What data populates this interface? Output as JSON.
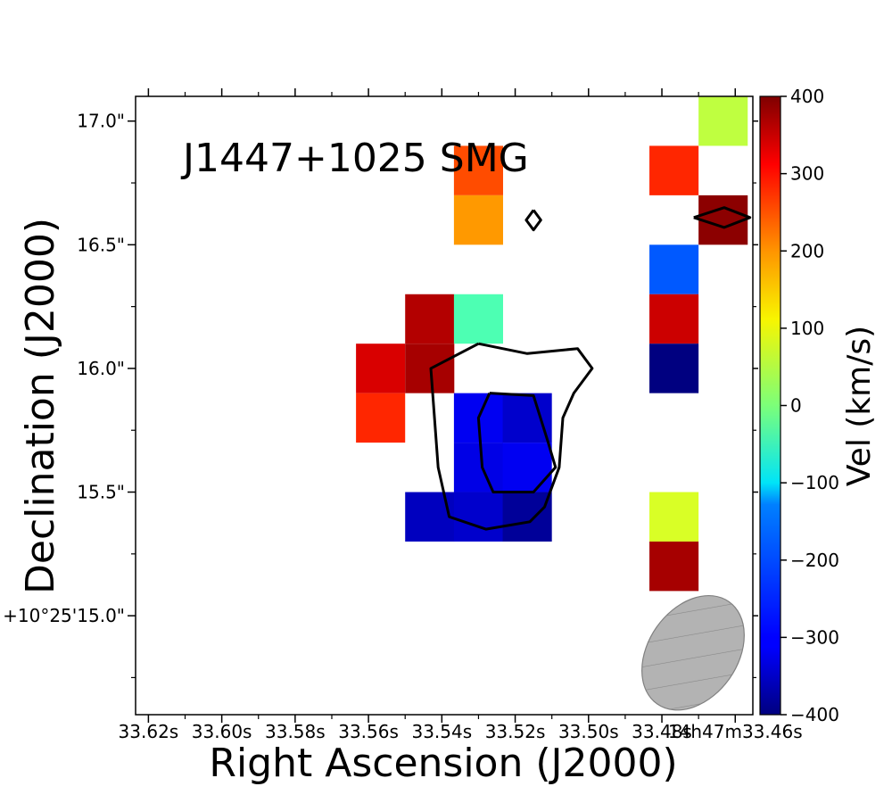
{
  "chart_data": {
    "type": "heatmap",
    "title": "J1447+1025 SMG",
    "xlabel": "Right Ascension (J2000)",
    "ylabel": "Declination (J2000)",
    "colorbar_label": "Vel (km/s)",
    "colorbar_range": [
      -400,
      400
    ],
    "colorbar_ticks": [
      400,
      300,
      200,
      100,
      0,
      -100,
      -200,
      -300,
      -400
    ],
    "colorbar_tick_labels": [
      "400",
      "300",
      "200",
      "100",
      "0",
      "−100",
      "−200",
      "−300",
      "−400"
    ],
    "xlim_s": [
      33.6235,
      33.4552
    ],
    "ylim_arcsec": [
      14.6,
      17.1
    ],
    "x_tick_values": [
      33.62,
      33.6,
      33.58,
      33.56,
      33.54,
      33.52,
      33.5,
      33.48,
      33.46
    ],
    "x_tick_labels": [
      "33.62s",
      "33.60s",
      "33.58s",
      "33.56s",
      "33.54s",
      "33.52s",
      "33.50s",
      "33.48s",
      "14h47m33.46s"
    ],
    "y_tick_values": [
      17.0,
      16.5,
      16.0,
      15.5,
      15.0
    ],
    "y_tick_labels": [
      "17.0\"",
      "16.5\"",
      "16.0\"",
      "15.5\"",
      "+10°25'15.0\""
    ],
    "pixel_size": {
      "ra_s": 0.0134,
      "dec_arcsec": 0.2
    },
    "pixels": [
      {
        "ra": 33.53,
        "dec": 16.8,
        "v": 240
      },
      {
        "ra": 33.53,
        "dec": 16.6,
        "v": 180
      },
      {
        "ra": 33.5433,
        "dec": 16.2,
        "v": 360
      },
      {
        "ra": 33.53,
        "dec": 16.2,
        "v": -40
      },
      {
        "ra": 33.5567,
        "dec": 16.0,
        "v": 330
      },
      {
        "ra": 33.5433,
        "dec": 16.0,
        "v": 370
      },
      {
        "ra": 33.5567,
        "dec": 15.8,
        "v": 270
      },
      {
        "ra": 33.53,
        "dec": 15.8,
        "v": -310
      },
      {
        "ra": 33.5167,
        "dec": 15.8,
        "v": -340
      },
      {
        "ra": 33.53,
        "dec": 15.6,
        "v": -320
      },
      {
        "ra": 33.5167,
        "dec": 15.6,
        "v": -310
      },
      {
        "ra": 33.5433,
        "dec": 15.4,
        "v": -350
      },
      {
        "ra": 33.53,
        "dec": 15.4,
        "v": -340
      },
      {
        "ra": 33.5167,
        "dec": 15.4,
        "v": -380
      },
      {
        "ra": 33.4767,
        "dec": 16.8,
        "v": 270
      },
      {
        "ra": 33.4767,
        "dec": 16.4,
        "v": -230
      },
      {
        "ra": 33.4767,
        "dec": 16.2,
        "v": 340
      },
      {
        "ra": 33.4767,
        "dec": 16.0,
        "v": -400
      },
      {
        "ra": 33.4767,
        "dec": 15.4,
        "v": 70
      },
      {
        "ra": 33.4767,
        "dec": 15.2,
        "v": 370
      },
      {
        "ra": 33.4633,
        "dec": 17.0,
        "v": 50
      },
      {
        "ra": 33.4633,
        "dec": 16.6,
        "v": 390
      }
    ],
    "contours": [
      {
        "level": "outer",
        "points": [
          [
            33.53,
            16.1
          ],
          [
            33.5167,
            16.06
          ],
          [
            33.503,
            16.08
          ],
          [
            33.499,
            16.0
          ],
          [
            33.504,
            15.9
          ],
          [
            33.507,
            15.8
          ],
          [
            33.508,
            15.6
          ],
          [
            33.512,
            15.44
          ],
          [
            33.516,
            15.38
          ],
          [
            33.528,
            15.35
          ],
          [
            33.538,
            15.4
          ],
          [
            33.541,
            15.6
          ],
          [
            33.542,
            15.8
          ],
          [
            33.543,
            16.0
          ],
          [
            33.53,
            16.1
          ]
        ]
      },
      {
        "level": "inner",
        "points": [
          [
            33.527,
            15.9
          ],
          [
            33.515,
            15.89
          ],
          [
            33.511,
            15.7
          ],
          [
            33.509,
            15.6
          ],
          [
            33.515,
            15.5
          ],
          [
            33.526,
            15.5
          ],
          [
            33.529,
            15.6
          ],
          [
            33.53,
            15.8
          ],
          [
            33.527,
            15.9
          ]
        ]
      },
      {
        "level": "outer",
        "points": [
          [
            33.515,
            16.64
          ],
          [
            33.513,
            16.6
          ],
          [
            33.515,
            16.56
          ],
          [
            33.517,
            16.6
          ],
          [
            33.515,
            16.64
          ]
        ]
      },
      {
        "level": "outer",
        "points": [
          [
            33.4713,
            16.61
          ],
          [
            33.463,
            16.65
          ],
          [
            33.456,
            16.61
          ],
          [
            33.463,
            16.57
          ],
          [
            33.4713,
            16.61
          ]
        ]
      }
    ],
    "beam": {
      "ra_center": 33.4715,
      "dec_center": 14.85,
      "label": "beam"
    }
  }
}
